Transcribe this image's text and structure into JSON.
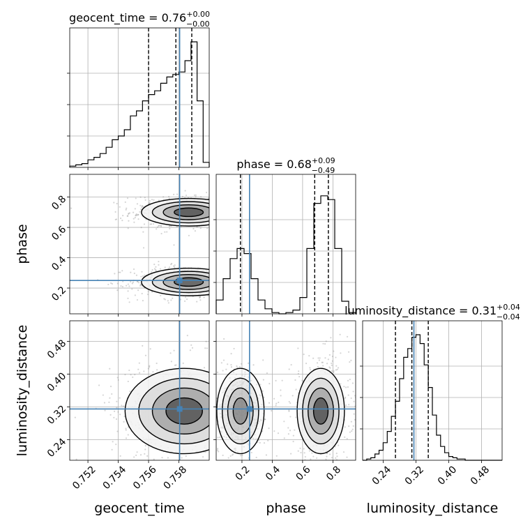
{
  "chart_data": {
    "type": "scatter",
    "kind": "corner-plot",
    "parameters": [
      {
        "key": "geocent_time",
        "label": "geocent_time",
        "range": [
          0.7508,
          0.76
        ],
        "ticks": [
          0.752,
          0.754,
          0.756,
          0.758
        ],
        "tick_labels": [
          "0.752",
          "0.754",
          "0.756",
          "0.758"
        ],
        "truth": 0.75805,
        "quantiles": [
          0.756,
          0.7578,
          0.75885
        ],
        "title": {
          "prefix": "geocent_time = 0.76",
          "plus": "+0.00",
          "minus": "−0.00"
        }
      },
      {
        "key": "phase",
        "label": "phase",
        "range": [
          0.03,
          0.95
        ],
        "ticks": [
          0.2,
          0.4,
          0.6,
          0.8
        ],
        "tick_labels": [
          "0.2",
          "0.4",
          "0.6",
          "0.8"
        ],
        "truth": 0.25,
        "quantiles": [
          0.19,
          0.68,
          0.77
        ],
        "title": {
          "prefix": "phase = 0.68",
          "plus": "+0.09",
          "minus": "−0.49"
        }
      },
      {
        "key": "luminosity_distance",
        "label": "luminosity_distance",
        "range": [
          0.19,
          0.53
        ],
        "ticks": [
          0.24,
          0.32,
          0.4,
          0.48
        ],
        "tick_labels": [
          "0.24",
          "0.32",
          "0.40",
          "0.48"
        ],
        "truth": 0.315,
        "quantiles": [
          0.27,
          0.31,
          0.35
        ],
        "title": {
          "prefix": "luminosity_distance = 0.31",
          "plus": "+0.04",
          "minus": "−0.04"
        }
      }
    ],
    "histograms": {
      "geocent_time": {
        "edges": [
          0.7508,
          0.7512,
          0.7516,
          0.752,
          0.7524,
          0.7528,
          0.7532,
          0.7536,
          0.754,
          0.7544,
          0.7548,
          0.7552,
          0.7556,
          0.756,
          0.7564,
          0.7568,
          0.7572,
          0.7576,
          0.758,
          0.7584,
          0.7588,
          0.7592,
          0.7596,
          0.76
        ],
        "counts": [
          0.01,
          0.02,
          0.03,
          0.06,
          0.08,
          0.11,
          0.16,
          0.22,
          0.25,
          0.3,
          0.41,
          0.45,
          0.53,
          0.58,
          0.61,
          0.67,
          0.72,
          0.74,
          0.76,
          0.85,
          1.0,
          0.53,
          0.04
        ]
      },
      "phase": {
        "edges": [
          0.03,
          0.076,
          0.122,
          0.168,
          0.214,
          0.26,
          0.306,
          0.352,
          0.398,
          0.444,
          0.49,
          0.536,
          0.582,
          0.628,
          0.674,
          0.72,
          0.766,
          0.812,
          0.858,
          0.904,
          0.95
        ],
        "counts": [
          0.11,
          0.28,
          0.44,
          0.52,
          0.48,
          0.28,
          0.11,
          0.04,
          0.01,
          0.0,
          0.01,
          0.03,
          0.13,
          0.52,
          0.88,
          0.94,
          0.91,
          0.52,
          0.1,
          0.01
        ]
      },
      "luminosity_distance": {
        "edges": [
          0.19,
          0.2,
          0.21,
          0.22,
          0.23,
          0.24,
          0.25,
          0.26,
          0.27,
          0.28,
          0.29,
          0.3,
          0.31,
          0.32,
          0.33,
          0.34,
          0.35,
          0.36,
          0.37,
          0.38,
          0.39,
          0.4,
          0.41,
          0.42,
          0.43,
          0.44,
          0.45,
          0.46,
          0.47,
          0.48,
          0.49,
          0.5,
          0.51,
          0.52,
          0.53
        ],
        "counts": [
          0.0,
          0.01,
          0.02,
          0.05,
          0.08,
          0.14,
          0.23,
          0.35,
          0.47,
          0.65,
          0.82,
          0.89,
          0.98,
          1.0,
          0.93,
          0.76,
          0.58,
          0.36,
          0.2,
          0.11,
          0.06,
          0.03,
          0.02,
          0.01,
          0.01,
          0.0,
          0.0,
          0.0,
          0.0,
          0.0,
          0.0,
          0.0,
          0.0,
          0.0
        ]
      }
    },
    "modes_2d": {
      "phase_vs_geocent_time": [
        {
          "x": 0.75865,
          "y": 0.7,
          "sx": 0.0012,
          "sy": 0.035,
          "w": 1.0
        },
        {
          "x": 0.75865,
          "y": 0.24,
          "sx": 0.0012,
          "sy": 0.035,
          "w": 0.9
        }
      ],
      "luminosity_distance_vs_geocent_time": [
        {
          "x": 0.75835,
          "y": 0.31,
          "sx": 0.0015,
          "sy": 0.04,
          "w": 1.0
        }
      ],
      "luminosity_distance_vs_phase": [
        {
          "x": 0.19,
          "y": 0.31,
          "sx": 0.06,
          "sy": 0.04,
          "w": 0.55
        },
        {
          "x": 0.72,
          "y": 0.31,
          "sx": 0.06,
          "sy": 0.04,
          "w": 1.0
        }
      ]
    },
    "truth_color": "#4682b4",
    "line_color": "#000000",
    "grid": true,
    "contour_levels": 3
  }
}
